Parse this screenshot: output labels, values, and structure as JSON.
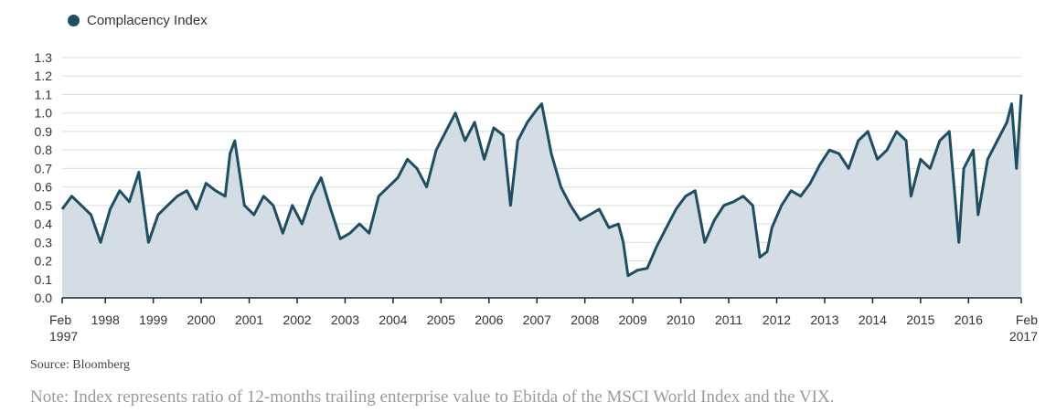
{
  "source": "Source: Bloomberg",
  "note": "Note: Index represents ratio of 12-months trailing enterprise value to Ebitda of the MSCI World Index and the VIX.",
  "colors": {
    "line": "#1f4e63",
    "area": "#d3dde3",
    "grid": "#dcdcdc"
  },
  "chart_data": {
    "type": "area",
    "title": "",
    "xlabel": "",
    "ylabel": "",
    "ylim": [
      0,
      1.3
    ],
    "xlim": [
      1997.1,
      2017.1
    ],
    "grid": "horizontal",
    "legend_position": "top-left",
    "y_ticks": [
      "0.0",
      "0.1",
      "0.2",
      "0.3",
      "0.4",
      "0.5",
      "0.6",
      "0.7",
      "0.8",
      "0.9",
      "1.0",
      "1.1",
      "1.2",
      "1.3"
    ],
    "x_ticks": [
      {
        "label": "Feb",
        "label2": "1997",
        "pos": 1997.1
      },
      {
        "label": "1998",
        "pos": 1998.0
      },
      {
        "label": "1999",
        "pos": 1999.0
      },
      {
        "label": "2000",
        "pos": 2000.0
      },
      {
        "label": "2001",
        "pos": 2001.0
      },
      {
        "label": "2002",
        "pos": 2002.0
      },
      {
        "label": "2003",
        "pos": 2003.0
      },
      {
        "label": "2004",
        "pos": 2004.0
      },
      {
        "label": "2005",
        "pos": 2005.0
      },
      {
        "label": "2006",
        "pos": 2006.0
      },
      {
        "label": "2007",
        "pos": 2007.0
      },
      {
        "label": "2008",
        "pos": 2008.0
      },
      {
        "label": "2009",
        "pos": 2009.0
      },
      {
        "label": "2010",
        "pos": 2010.0
      },
      {
        "label": "2011",
        "pos": 2011.0
      },
      {
        "label": "2012",
        "pos": 2012.0
      },
      {
        "label": "2013",
        "pos": 2013.0
      },
      {
        "label": "2014",
        "pos": 2014.0
      },
      {
        "label": "2015",
        "pos": 2015.0
      },
      {
        "label": "2016",
        "pos": 2016.0
      },
      {
        "label": "Feb",
        "label2": "2017",
        "pos": 2017.1
      }
    ],
    "series": [
      {
        "name": "Complacency Index",
        "x": [
          1997.1,
          1997.3,
          1997.5,
          1997.7,
          1997.9,
          1998.1,
          1998.3,
          1998.5,
          1998.7,
          1998.9,
          1999.1,
          1999.3,
          1999.5,
          1999.7,
          1999.9,
          2000.1,
          2000.3,
          2000.5,
          2000.6,
          2000.7,
          2000.9,
          2001.1,
          2001.3,
          2001.5,
          2001.7,
          2001.9,
          2002.1,
          2002.3,
          2002.5,
          2002.7,
          2002.9,
          2003.1,
          2003.3,
          2003.5,
          2003.7,
          2003.9,
          2004.1,
          2004.3,
          2004.5,
          2004.7,
          2004.9,
          2005.1,
          2005.3,
          2005.5,
          2005.7,
          2005.9,
          2006.1,
          2006.3,
          2006.45,
          2006.6,
          2006.8,
          2007.0,
          2007.1,
          2007.3,
          2007.5,
          2007.7,
          2007.9,
          2008.1,
          2008.3,
          2008.5,
          2008.7,
          2008.8,
          2008.9,
          2009.1,
          2009.3,
          2009.5,
          2009.7,
          2009.9,
          2010.1,
          2010.3,
          2010.5,
          2010.7,
          2010.9,
          2011.1,
          2011.3,
          2011.5,
          2011.65,
          2011.8,
          2011.9,
          2012.1,
          2012.3,
          2012.5,
          2012.7,
          2012.9,
          2013.1,
          2013.3,
          2013.5,
          2013.7,
          2013.9,
          2014.1,
          2014.3,
          2014.5,
          2014.7,
          2014.8,
          2015.0,
          2015.2,
          2015.4,
          2015.6,
          2015.7,
          2015.8,
          2015.9,
          2016.1,
          2016.2,
          2016.4,
          2016.6,
          2016.8,
          2016.9,
          2017.0,
          2017.1
        ],
        "values": [
          0.48,
          0.55,
          0.5,
          0.45,
          0.3,
          0.48,
          0.58,
          0.52,
          0.68,
          0.3,
          0.45,
          0.5,
          0.55,
          0.58,
          0.48,
          0.62,
          0.58,
          0.55,
          0.78,
          0.85,
          0.5,
          0.45,
          0.55,
          0.5,
          0.35,
          0.5,
          0.4,
          0.55,
          0.65,
          0.48,
          0.32,
          0.35,
          0.4,
          0.35,
          0.55,
          0.6,
          0.65,
          0.75,
          0.7,
          0.6,
          0.8,
          0.9,
          1.0,
          0.85,
          0.95,
          0.75,
          0.92,
          0.88,
          0.5,
          0.85,
          0.95,
          1.02,
          1.05,
          0.78,
          0.6,
          0.5,
          0.42,
          0.45,
          0.48,
          0.38,
          0.4,
          0.3,
          0.12,
          0.15,
          0.16,
          0.28,
          0.38,
          0.48,
          0.55,
          0.58,
          0.3,
          0.42,
          0.5,
          0.52,
          0.55,
          0.5,
          0.22,
          0.25,
          0.38,
          0.5,
          0.58,
          0.55,
          0.62,
          0.72,
          0.8,
          0.78,
          0.7,
          0.85,
          0.9,
          0.75,
          0.8,
          0.9,
          0.85,
          0.55,
          0.75,
          0.7,
          0.85,
          0.9,
          0.6,
          0.3,
          0.7,
          0.8,
          0.45,
          0.75,
          0.85,
          0.95,
          1.05,
          0.7,
          1.1
        ]
      }
    ]
  },
  "legend": {
    "label": "Complacency Index"
  }
}
